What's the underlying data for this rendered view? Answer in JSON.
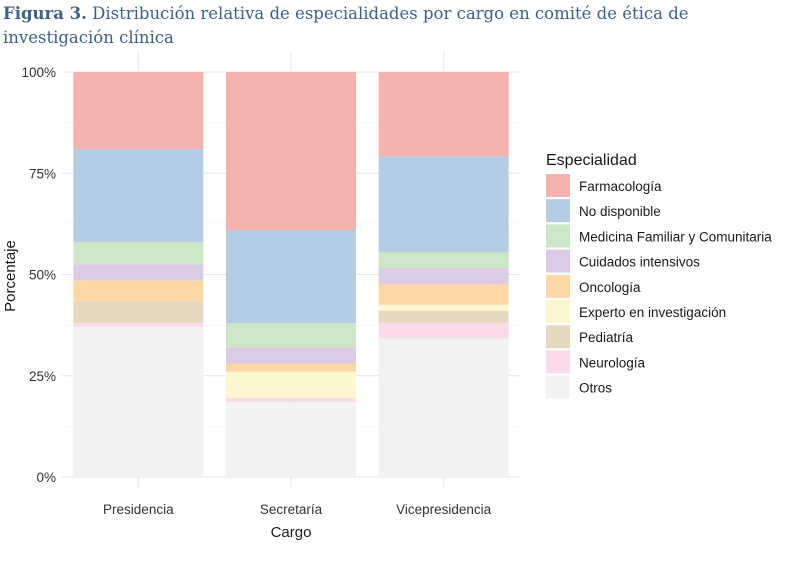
{
  "caption": {
    "label": "Figura 3.",
    "text": "Distribución relativa de especialidades por cargo en comité de ética de investigación clínica"
  },
  "chart_data": {
    "type": "bar",
    "stacked": true,
    "normalized": true,
    "categories": [
      "Presidencia",
      "Secretaría",
      "Vicepresidencia"
    ],
    "xlabel": "Cargo",
    "ylabel": "Porcentaje",
    "ylim": [
      0,
      100
    ],
    "yticks": [
      {
        "value": 0,
        "label": "0%"
      },
      {
        "value": 25,
        "label": "25%"
      },
      {
        "value": 50,
        "label": "50%"
      },
      {
        "value": 75,
        "label": "75%"
      },
      {
        "value": 100,
        "label": "100%"
      }
    ],
    "legend_title": "Especialidad",
    "legend_position": "right",
    "series": [
      {
        "name": "Farmacología",
        "color": "#f7b2b0",
        "values": [
          19,
          39,
          21
        ]
      },
      {
        "name": "No disponible",
        "color": "#b4cde4",
        "values": [
          23,
          23,
          24
        ]
      },
      {
        "name": "Medicina Familiar y Comunitaria",
        "color": "#cce6c8",
        "values": [
          5.5,
          6,
          4
        ]
      },
      {
        "name": "Cuidados intensivos",
        "color": "#ddcae4",
        "values": [
          4,
          4,
          4
        ]
      },
      {
        "name": "Oncología",
        "color": "#fdd8a5",
        "values": [
          5,
          2,
          5
        ]
      },
      {
        "name": "Experto en investigación",
        "color": "#fdf7cf",
        "values": [
          0,
          6.5,
          1.5
        ]
      },
      {
        "name": "Pediatría",
        "color": "#e5d9bf",
        "values": [
          5.5,
          0,
          3
        ]
      },
      {
        "name": "Neurología",
        "color": "#fadbea",
        "values": [
          1,
          1,
          4
        ]
      },
      {
        "name": "Otros",
        "color": "#f2f2f2",
        "values": [
          37,
          18.5,
          34.5
        ]
      }
    ]
  }
}
